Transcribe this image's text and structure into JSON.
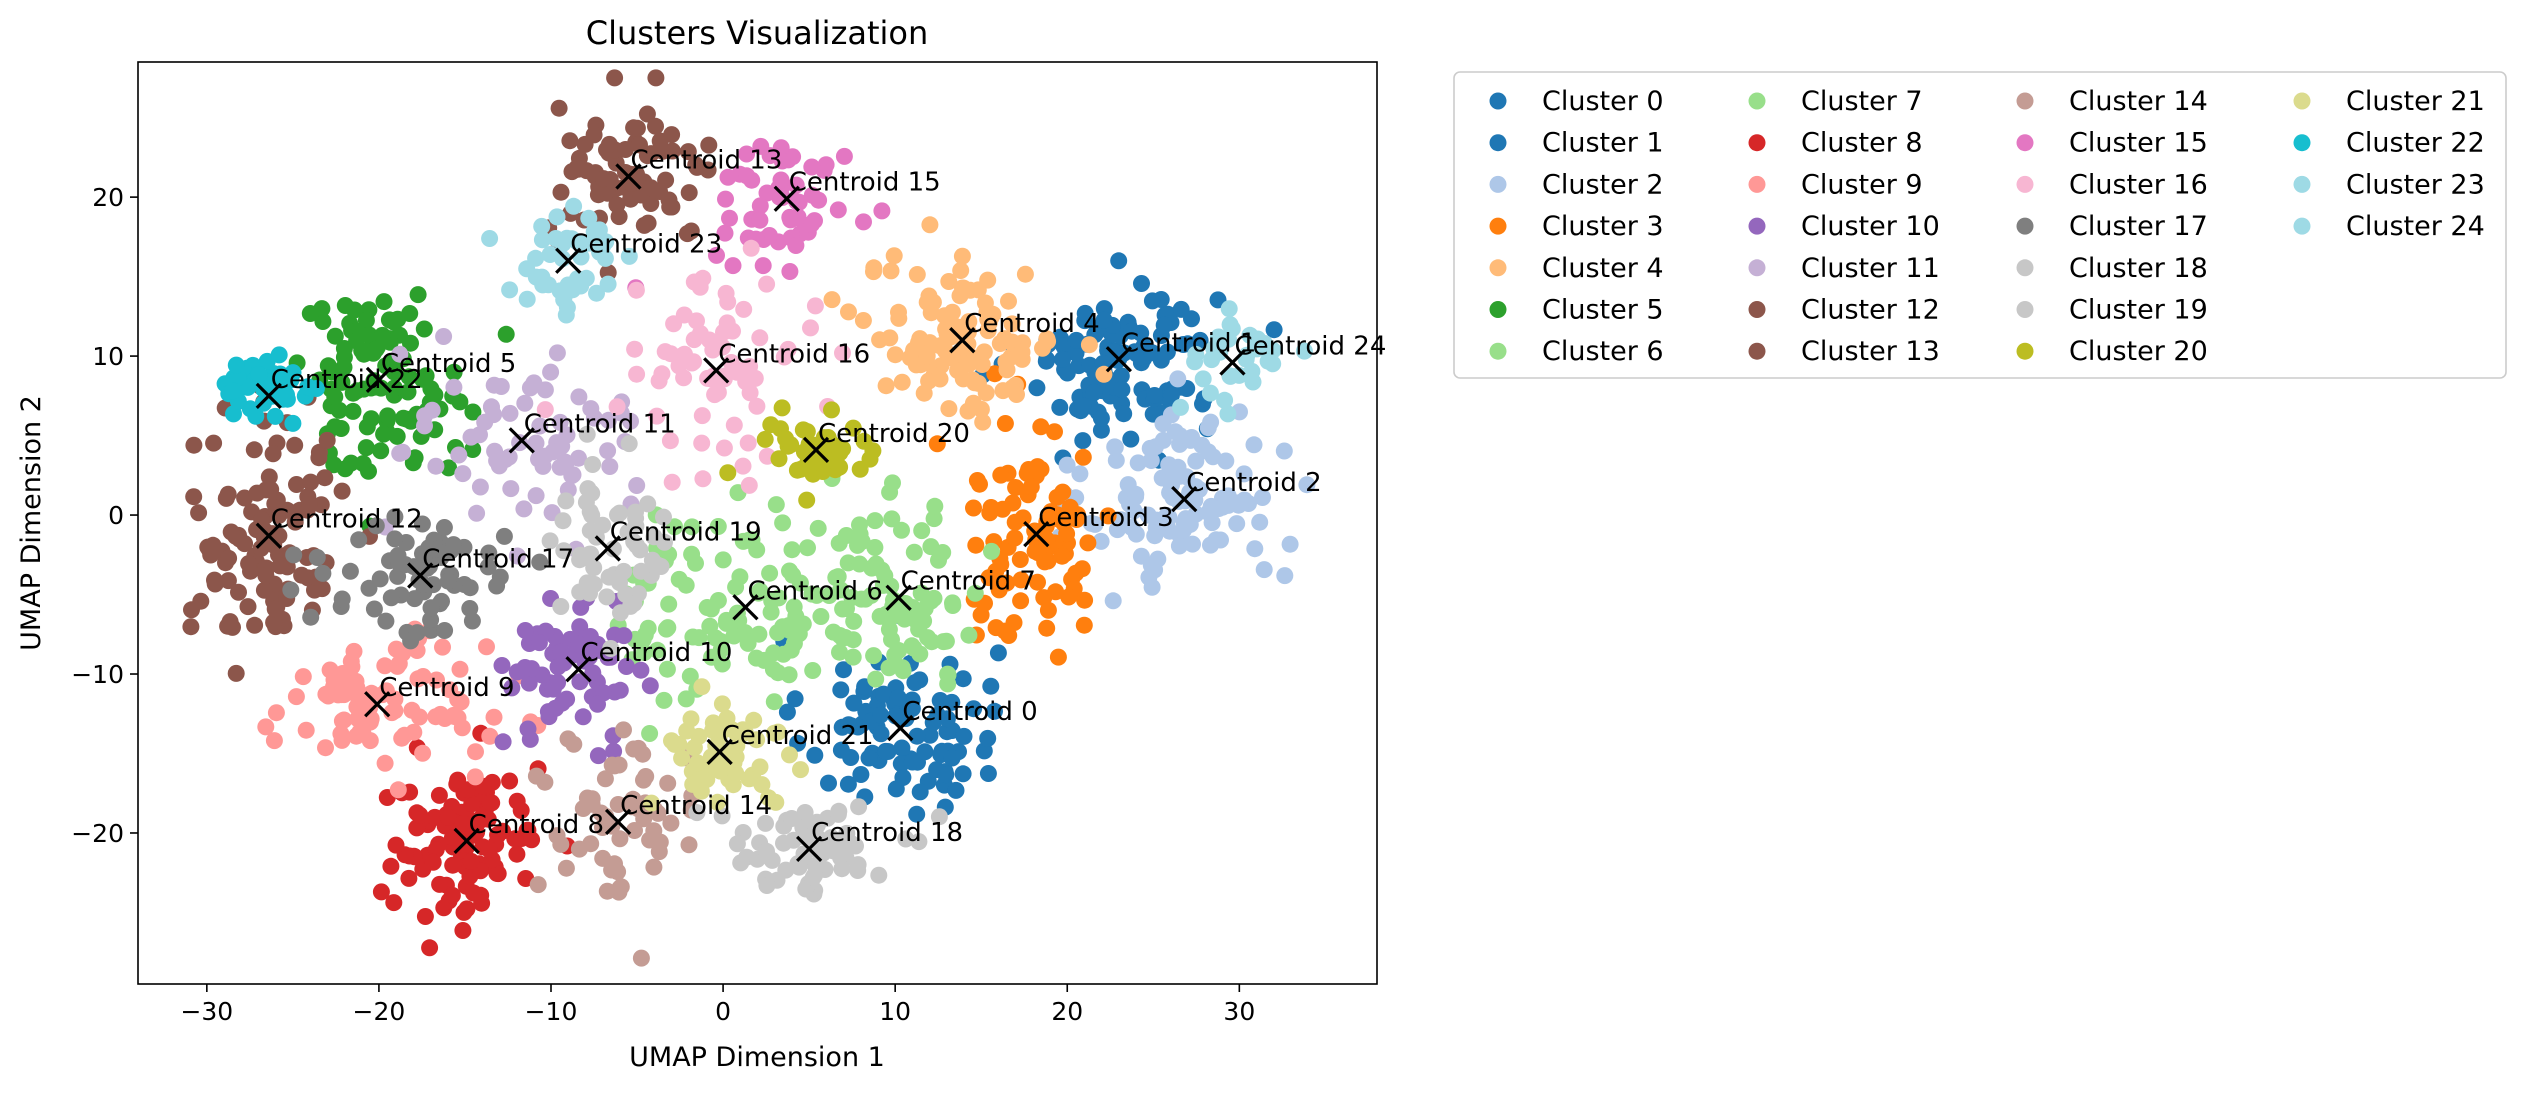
{
  "chart_data": {
    "type": "scatter",
    "title": "Clusters Visualization",
    "xlabel": "UMAP Dimension 1",
    "ylabel": "UMAP Dimension 2",
    "xlim": [
      -34,
      38
    ],
    "ylim": [
      -29.5,
      28.5
    ],
    "xticks": [
      -30,
      -20,
      -10,
      0,
      10,
      20,
      30
    ],
    "yticks": [
      -20,
      -10,
      0,
      10,
      20
    ],
    "grid": false,
    "legend_placement": "outside-top-right",
    "legend_columns": 4,
    "series": [
      {
        "name": "Cluster 0",
        "color": "#1f77b4",
        "centroid": [
          10.3,
          -13.4
        ],
        "spread": [
          3.5,
          3.5
        ],
        "count": 95
      },
      {
        "name": "Cluster 1",
        "color": "#1f77b4",
        "centroid": [
          23.0,
          9.8
        ],
        "spread": [
          3.5,
          3.0
        ],
        "count": 120
      },
      {
        "name": "Cluster 2",
        "color": "#aec7e8",
        "centroid": [
          26.8,
          1.0
        ],
        "spread": [
          3.5,
          3.5
        ],
        "count": 115
      },
      {
        "name": "Cluster 3",
        "color": "#ff7f0e",
        "centroid": [
          18.2,
          -1.2
        ],
        "spread": [
          2.8,
          4.5
        ],
        "count": 90
      },
      {
        "name": "Cluster 4",
        "color": "#ffbb78",
        "centroid": [
          13.9,
          11.0
        ],
        "spread": [
          3.5,
          3.0
        ],
        "count": 110
      },
      {
        "name": "Cluster 5",
        "color": "#2ca02c",
        "centroid": [
          -20.0,
          8.5
        ],
        "spread": [
          3.2,
          3.5
        ],
        "count": 105
      },
      {
        "name": "Cluster 6",
        "color": "#98df8a",
        "centroid": [
          1.3,
          -5.8
        ],
        "spread": [
          4.5,
          4.0
        ],
        "count": 110
      },
      {
        "name": "Cluster 7",
        "color": "#98df8a",
        "centroid": [
          10.2,
          -5.2
        ],
        "spread": [
          3.0,
          3.5
        ],
        "count": 80
      },
      {
        "name": "Cluster 8",
        "color": "#d62728",
        "centroid": [
          -14.9,
          -20.5
        ],
        "spread": [
          2.8,
          3.0
        ],
        "count": 110
      },
      {
        "name": "Cluster 9",
        "color": "#ff9896",
        "centroid": [
          -20.1,
          -11.9
        ],
        "spread": [
          4.0,
          2.5
        ],
        "count": 90
      },
      {
        "name": "Cluster 10",
        "color": "#9467bd",
        "centroid": [
          -8.4,
          -9.7
        ],
        "spread": [
          2.5,
          2.5
        ],
        "count": 70
      },
      {
        "name": "Cluster 11",
        "color": "#c5b0d5",
        "centroid": [
          -11.7,
          4.7
        ],
        "spread": [
          4.0,
          4.0
        ],
        "count": 70
      },
      {
        "name": "Cluster 12",
        "color": "#8c564b",
        "centroid": [
          -26.4,
          -1.3
        ],
        "spread": [
          2.8,
          4.5
        ],
        "count": 110
      },
      {
        "name": "Cluster 13",
        "color": "#8c564b",
        "centroid": [
          -5.5,
          21.3
        ],
        "spread": [
          3.0,
          2.5
        ],
        "count": 80
      },
      {
        "name": "Cluster 14",
        "color": "#c49c94",
        "centroid": [
          -6.1,
          -19.3
        ],
        "spread": [
          3.0,
          3.5
        ],
        "count": 60
      },
      {
        "name": "Cluster 15",
        "color": "#e377c2",
        "centroid": [
          3.7,
          19.9
        ],
        "spread": [
          2.8,
          2.5
        ],
        "count": 55
      },
      {
        "name": "Cluster 16",
        "color": "#f7b6d2",
        "centroid": [
          -0.4,
          9.1
        ],
        "spread": [
          3.0,
          3.5
        ],
        "count": 70
      },
      {
        "name": "Cluster 17",
        "color": "#7f7f7f",
        "centroid": [
          -17.6,
          -3.8
        ],
        "spread": [
          3.5,
          2.5
        ],
        "count": 70
      },
      {
        "name": "Cluster 18",
        "color": "#c7c7c7",
        "centroid": [
          5.0,
          -21.0
        ],
        "spread": [
          3.0,
          1.8
        ],
        "count": 70
      },
      {
        "name": "Cluster 19",
        "color": "#c7c7c7",
        "centroid": [
          -6.7,
          -2.1
        ],
        "spread": [
          2.5,
          3.5
        ],
        "count": 55
      },
      {
        "name": "Cluster 20",
        "color": "#bcbd22",
        "centroid": [
          5.4,
          4.1
        ],
        "spread": [
          2.0,
          1.8
        ],
        "count": 45
      },
      {
        "name": "Cluster 21",
        "color": "#dbdb8d",
        "centroid": [
          -0.2,
          -14.9
        ],
        "spread": [
          2.5,
          2.5
        ],
        "count": 55
      },
      {
        "name": "Cluster 22",
        "color": "#17becf",
        "centroid": [
          -26.4,
          7.5
        ],
        "spread": [
          1.8,
          1.5
        ],
        "count": 45
      },
      {
        "name": "Cluster 23",
        "color": "#9edae5",
        "centroid": [
          -9.0,
          16.0
        ],
        "spread": [
          2.5,
          2.5
        ],
        "count": 45
      },
      {
        "name": "Cluster 24",
        "color": "#9edae5",
        "centroid": [
          29.6,
          9.6
        ],
        "spread": [
          2.0,
          2.0
        ],
        "count": 30
      }
    ],
    "centroid_labels": [
      "Centroid 0",
      "Centroid 1",
      "Centroid 2",
      "Centroid 3",
      "Centroid 4",
      "Centroid 5",
      "Centroid 6",
      "Centroid 7",
      "Centroid 8",
      "Centroid 9",
      "Centroid 10",
      "Centroid 11",
      "Centroid 12",
      "Centroid 13",
      "Centroid 14",
      "Centroid 15",
      "Centroid 16",
      "Centroid 17",
      "Centroid 18",
      "Centroid 19",
      "Centroid 20",
      "Centroid 21",
      "Centroid 22",
      "Centroid 23",
      "Centroid 24"
    ]
  }
}
